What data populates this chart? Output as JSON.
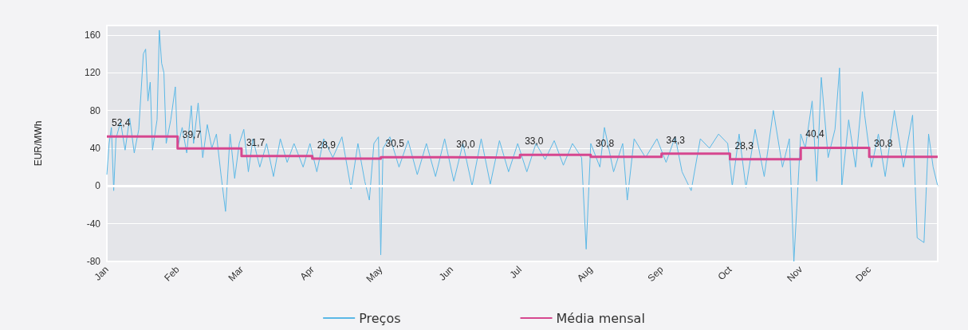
{
  "chart_data": {
    "type": "line",
    "ylabel": "EUR/MWh",
    "xlim": [
      "--01-01",
      "--12-31"
    ],
    "xticks": [
      {
        "value": "--01-01",
        "label": "Jan"
      },
      {
        "value": "--02-01",
        "label": "Feb"
      },
      {
        "value": "--03-01",
        "label": "Mar"
      },
      {
        "value": "--04-01",
        "label": "Apr"
      },
      {
        "value": "--05-01",
        "label": "May"
      },
      {
        "value": "--06-01",
        "label": "Jun"
      },
      {
        "value": "--07-01",
        "label": "Jul"
      },
      {
        "value": "--08-01",
        "label": "Aug"
      },
      {
        "value": "--09-01",
        "label": "Sep"
      },
      {
        "value": "--10-01",
        "label": "Oct"
      },
      {
        "value": "--11-01",
        "label": "Nov"
      },
      {
        "value": "--12-01",
        "label": "Dec"
      }
    ],
    "ylim": [
      -80,
      170
    ],
    "yticks": [
      -80,
      -40,
      0,
      40,
      80,
      120,
      160
    ],
    "grid": "y",
    "legend": "bottom",
    "marker": "none",
    "line_style": "solid",
    "ref_lines": [
      {
        "axis": "y",
        "value": 0,
        "color": "#ffffff"
      }
    ],
    "series": [
      {
        "name": "Preços",
        "type": "line",
        "color": "#5bb8e6",
        "x": [
          "--01-01",
          "--01-02",
          "--01-03",
          "--01-04",
          "--01-05",
          "--01-07",
          "--01-09",
          "--01-11",
          "--01-13",
          "--01-15",
          "--01-16",
          "--01-17",
          "--01-18",
          "--01-19",
          "--01-20",
          "--01-21",
          "--01-23",
          "--01-24",
          "--01-25",
          "--01-26",
          "--01-27",
          "--01-29",
          "--01-31",
          "--02-01",
          "--02-03",
          "--02-05",
          "--02-07",
          "--02-08",
          "--02-10",
          "--02-12",
          "--02-14",
          "--02-16",
          "--02-18",
          "--02-20",
          "--02-22",
          "--02-24",
          "--02-26",
          "--02-28",
          "--03-02",
          "--03-04",
          "--03-06",
          "--03-09",
          "--03-12",
          "--03-15",
          "--03-18",
          "--03-21",
          "--03-24",
          "--03-28",
          "--03-31",
          "--04-03",
          "--04-06",
          "--04-10",
          "--04-14",
          "--04-18",
          "--04-21",
          "--04-24",
          "--04-26",
          "--04-28",
          "--04-30",
          "--05-01",
          "--05-02",
          "--05-05",
          "--05-09",
          "--05-13",
          "--05-17",
          "--05-21",
          "--05-25",
          "--05-29",
          "--06-02",
          "--06-06",
          "--06-10",
          "--06-14",
          "--06-18",
          "--06-22",
          "--06-26",
          "--06-30",
          "--07-04",
          "--07-08",
          "--07-12",
          "--07-16",
          "--07-20",
          "--07-24",
          "--07-28",
          "--07-30",
          "--08-01",
          "--08-05",
          "--08-07",
          "--08-11",
          "--08-15",
          "--08-17",
          "--08-20",
          "--08-25",
          "--08-30",
          "--09-03",
          "--09-07",
          "--09-10",
          "--09-14",
          "--09-18",
          "--09-22",
          "--09-26",
          "--09-30",
          "--10-02",
          "--10-05",
          "--10-08",
          "--10-12",
          "--10-16",
          "--10-20",
          "--10-24",
          "--10-27",
          "--10-29",
          "--11-01",
          "--11-03",
          "--11-06",
          "--11-08",
          "--11-10",
          "--11-13",
          "--11-16",
          "--11-18",
          "--11-19",
          "--11-22",
          "--11-25",
          "--11-28",
          "--11-29",
          "--12-02",
          "--12-05",
          "--12-08",
          "--12-12",
          "--12-16",
          "--12-20",
          "--12-22",
          "--12-25",
          "--12-27",
          "--12-29",
          "--12-31"
        ],
        "values": [
          12,
          45,
          62,
          -5,
          50,
          68,
          38,
          72,
          35,
          60,
          100,
          140,
          145,
          90,
          110,
          38,
          70,
          165,
          130,
          120,
          45,
          70,
          105,
          40,
          62,
          35,
          85,
          45,
          88,
          30,
          65,
          40,
          55,
          12,
          -27,
          55,
          8,
          45,
          60,
          15,
          50,
          20,
          45,
          10,
          50,
          25,
          45,
          20,
          45,
          15,
          50,
          30,
          52,
          -3,
          45,
          5,
          -15,
          45,
          52,
          -73,
          40,
          52,
          20,
          48,
          12,
          45,
          10,
          50,
          5,
          45,
          0,
          50,
          2,
          48,
          15,
          45,
          15,
          45,
          28,
          48,
          22,
          45,
          30,
          -67,
          45,
          20,
          62,
          15,
          45,
          -15,
          50,
          30,
          50,
          25,
          52,
          15,
          -5,
          50,
          40,
          55,
          45,
          0,
          55,
          -2,
          60,
          10,
          80,
          20,
          50,
          -80,
          55,
          40,
          90,
          5,
          115,
          30,
          60,
          125,
          0,
          70,
          20,
          100,
          75,
          20,
          55,
          10,
          80,
          20,
          75,
          -55,
          -60,
          55,
          20,
          0
        ]
      },
      {
        "name": "Média mensal",
        "type": "step",
        "color": "#d6478f",
        "x": [
          "--01-01",
          "--02-01",
          "--03-01",
          "--04-01",
          "--05-01",
          "--06-01",
          "--07-01",
          "--08-01",
          "--09-01",
          "--10-01",
          "--11-01",
          "--12-01",
          "--12-31"
        ],
        "values": [
          52.4,
          39.7,
          31.7,
          28.9,
          30.5,
          30.0,
          33.0,
          30.8,
          34.3,
          28.3,
          40.4,
          30.8,
          30.8
        ],
        "value_labels": [
          "52,4",
          "39,7",
          "31,7",
          "28,9",
          "30,5",
          "30,0",
          "33,0",
          "30,8",
          "34,3",
          "28,3",
          "40,4",
          "30,8",
          null
        ]
      }
    ]
  }
}
